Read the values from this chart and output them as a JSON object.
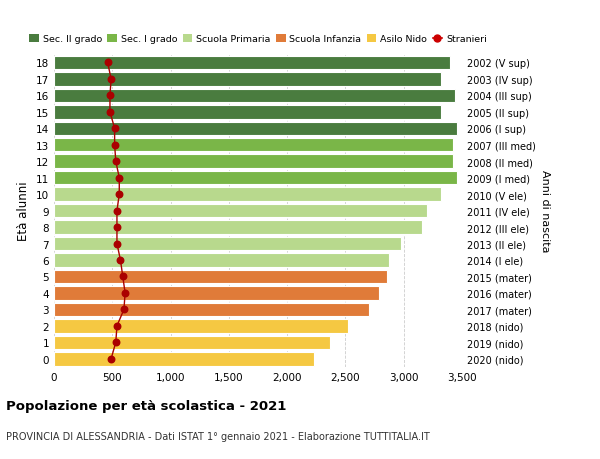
{
  "ages": [
    18,
    17,
    16,
    15,
    14,
    13,
    12,
    11,
    10,
    9,
    8,
    7,
    6,
    5,
    4,
    3,
    2,
    1,
    0
  ],
  "bar_values": [
    3400,
    3320,
    3440,
    3320,
    3460,
    3420,
    3420,
    3460,
    3320,
    3200,
    3160,
    2980,
    2870,
    2860,
    2790,
    2700,
    2520,
    2370,
    2230
  ],
  "stranieri_values": [
    460,
    490,
    480,
    480,
    520,
    520,
    530,
    560,
    560,
    540,
    540,
    540,
    570,
    590,
    610,
    600,
    540,
    530,
    490
  ],
  "right_labels": [
    "2002 (V sup)",
    "2003 (IV sup)",
    "2004 (III sup)",
    "2005 (II sup)",
    "2006 (I sup)",
    "2007 (III med)",
    "2008 (II med)",
    "2009 (I med)",
    "2010 (V ele)",
    "2011 (IV ele)",
    "2012 (III ele)",
    "2013 (II ele)",
    "2014 (I ele)",
    "2015 (mater)",
    "2016 (mater)",
    "2017 (mater)",
    "2018 (nido)",
    "2019 (nido)",
    "2020 (nido)"
  ],
  "bar_colors": [
    "#4a7c3f",
    "#4a7c3f",
    "#4a7c3f",
    "#4a7c3f",
    "#4a7c3f",
    "#7ab648",
    "#7ab648",
    "#7ab648",
    "#b8d98d",
    "#b8d98d",
    "#b8d98d",
    "#b8d98d",
    "#b8d98d",
    "#e07b39",
    "#e07b39",
    "#e07b39",
    "#f5c842",
    "#f5c842",
    "#f5c842"
  ],
  "legend_labels": [
    "Sec. II grado",
    "Sec. I grado",
    "Scuola Primaria",
    "Scuola Infanzia",
    "Asilo Nido",
    "Stranieri"
  ],
  "legend_colors": [
    "#4a7c3f",
    "#7ab648",
    "#b8d98d",
    "#e07b39",
    "#f5c842",
    "#cc0000"
  ],
  "ylabel": "Età alunni",
  "right_ylabel": "Anni di nascita",
  "title": "Popolazione per età scolastica - 2021",
  "subtitle": "PROVINCIA DI ALESSANDRIA - Dati ISTAT 1° gennaio 2021 - Elaborazione TUTTITALIA.IT",
  "stranieri_color": "#aa0000",
  "line_color": "#aa0000",
  "xlim": [
    0,
    3500
  ],
  "xticks": [
    0,
    500,
    1000,
    1500,
    2000,
    2500,
    3000,
    3500
  ],
  "xtick_labels": [
    "0",
    "500",
    "1,000",
    "1,500",
    "2,000",
    "2,500",
    "3,000",
    "3,500"
  ],
  "bar_height": 0.82,
  "bg_color": "#ffffff",
  "grid_color": "#cccccc"
}
